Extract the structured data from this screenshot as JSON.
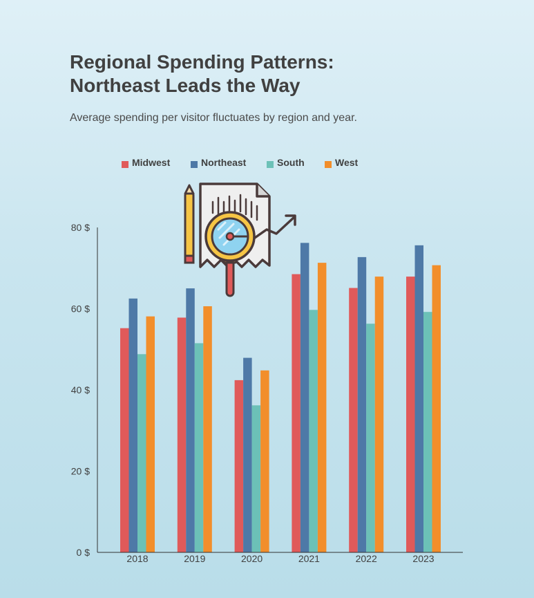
{
  "title_lines": [
    "Regional Spending Patterns:",
    "Northeast Leads the Way"
  ],
  "subtitle": "Average spending per visitor fluctuates by region and year.",
  "chart_data": {
    "type": "bar",
    "categories": [
      "2018",
      "2019",
      "2020",
      "2021",
      "2022",
      "2023"
    ],
    "series": [
      {
        "name": "Midwest",
        "color": "#e05a5a",
        "values": [
          55.2,
          57.8,
          42.4,
          68.5,
          65.1,
          67.9
        ]
      },
      {
        "name": "Northeast",
        "color": "#4e79a7",
        "values": [
          62.5,
          65.0,
          47.9,
          76.2,
          72.7,
          75.6
        ]
      },
      {
        "name": "South",
        "color": "#6cc1b7",
        "values": [
          48.8,
          51.5,
          36.2,
          59.7,
          56.3,
          59.2
        ]
      },
      {
        "name": "West",
        "color": "#f28e2b",
        "values": [
          58.1,
          60.6,
          44.8,
          71.3,
          67.9,
          70.7
        ]
      }
    ],
    "ylim": [
      0,
      80
    ],
    "yticks": [
      0,
      20,
      40,
      60,
      80
    ],
    "ytick_labels": [
      "0 $",
      "20 $",
      "40 $",
      "60 $",
      "80 $"
    ],
    "legend_position": "top-left",
    "grid": false
  },
  "decoration": {
    "icon": "report-magnifier-icon"
  }
}
